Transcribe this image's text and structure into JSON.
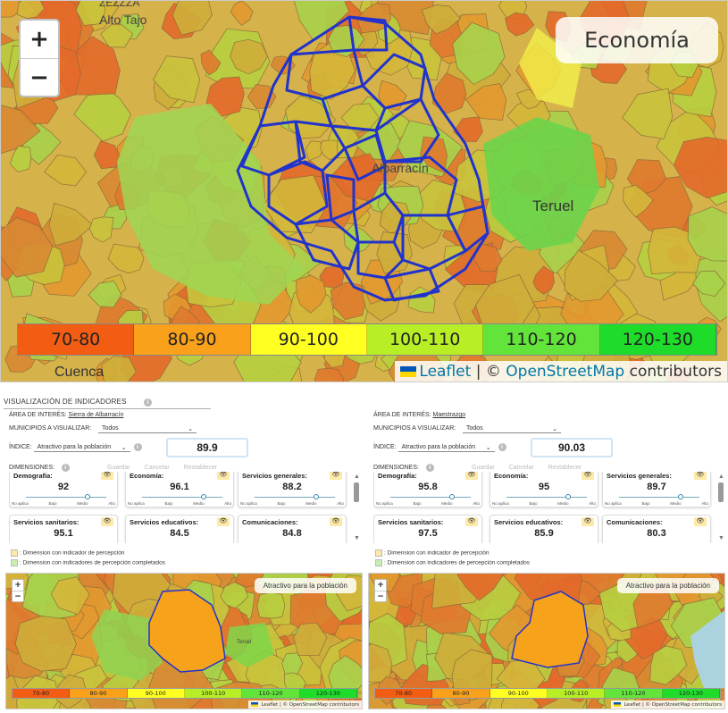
{
  "big_map": {
    "title": "Economía",
    "zoom_in": "+",
    "zoom_out": "−",
    "place_labels": {
      "albarracin": "Albarracín",
      "teruel": "Teruel",
      "cuenca": "Cuenca",
      "alto_tajo": "Alto Tajo",
      "top_fragment": "ZEZZZA"
    },
    "legend": [
      "70-80",
      "80-90",
      "90-100",
      "100-110",
      "110-120",
      "120-130"
    ],
    "attribution_leaflet": "Leaflet",
    "attribution_osm": "OpenStreetMap",
    "attribution_suffix": "contributors"
  },
  "legend_colors": [
    "#f25c13",
    "#f9a11b",
    "#ffff22",
    "#b7ee26",
    "#62e43a",
    "#1fdc2a"
  ],
  "section_title": "VISUALIZACIÓN DE INDICADORES",
  "labels": {
    "area": "ÁREA DE INTERÉS:",
    "municipios": "MUNICIPIOS A VISUALIZAR:",
    "indice": "ÍNDICE:",
    "dimensiones": "DIMENSIONES:",
    "guardar": "Guardar",
    "cancelar": "Cancelar",
    "restablecer": "Restablecer",
    "legend_yellow": ": Dimension con indicador de percepción",
    "legend_green": ": Dimension con indicadores de percepción completados",
    "slider_ticks": [
      "No aplica",
      "Bajo",
      "Medio",
      "Alto"
    ],
    "eye": "👁"
  },
  "panels": [
    {
      "area": "Sierra de Albarracín",
      "municipios": "Todos",
      "indice": "Atractivo para la población",
      "indice_value": "89.9",
      "cards": [
        {
          "name": "Demografía:",
          "value": "92",
          "slider": 0.75
        },
        {
          "name": "Economía:",
          "value": "96.1",
          "slider": 0.75
        },
        {
          "name": "Servicios generales:",
          "value": "88.2",
          "slider": 0.75
        },
        {
          "name": "Servicios sanitarios:",
          "value": "95.1"
        },
        {
          "name": "Servicios educativos:",
          "value": "84.5"
        },
        {
          "name": "Comunicaciones:",
          "value": "84.8"
        }
      ],
      "map_title": "Atractivo para la población",
      "map_legend": [
        "70-80",
        "80-90",
        "90-100",
        "100-110",
        "110-120",
        "120-130"
      ],
      "attribution": "Leaflet | © OpenStreetMap contributors",
      "place_label": "Teruel"
    },
    {
      "area": "Maestrazgo",
      "municipios": "Todos",
      "indice": "Atractivo para la población",
      "indice_value": "90.03",
      "cards": [
        {
          "name": "Demografía:",
          "value": "95.8",
          "slider": 0.75
        },
        {
          "name": "Economía:",
          "value": "95",
          "slider": 0.75
        },
        {
          "name": "Servicios generales:",
          "value": "89.7",
          "slider": 0.75
        },
        {
          "name": "Servicios sanitarios:",
          "value": "97.5"
        },
        {
          "name": "Servicios educativos:",
          "value": "85.9"
        },
        {
          "name": "Comunicaciones:",
          "value": "80.3"
        }
      ],
      "map_title": "Atractivo para la población",
      "map_legend": [
        "70-80",
        "80-90",
        "90-100",
        "100-110",
        "110-120",
        "120-130"
      ],
      "attribution": "Leaflet | © OpenStreetMap contributors",
      "place_label": ""
    }
  ]
}
